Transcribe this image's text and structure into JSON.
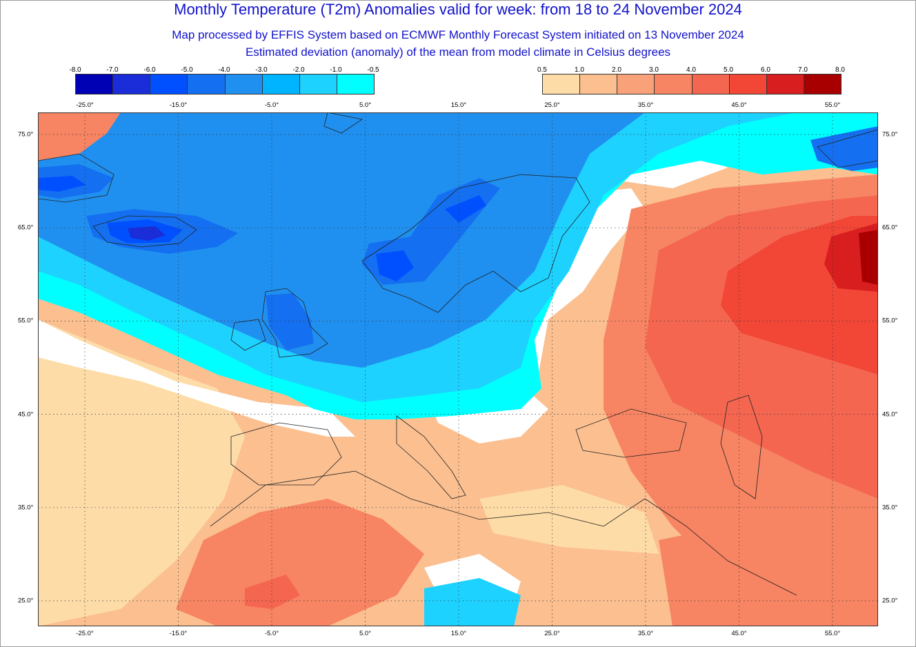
{
  "titles": {
    "main": "Monthly Temperature (T2m) Anomalies valid for week: from 18 to 24 November 2024",
    "sub1": "Map processed by EFFIS System based on ECMWF Monthly Forecast System initiated on 13 November 2024",
    "sub2": "Estimated deviation (anomaly) of the mean from model climate in Celsius degrees"
  },
  "legend_cold": {
    "ticks": [
      "-8.0",
      "-7.0",
      "-6.0",
      "-5.0",
      "-4.0",
      "-3.0",
      "-2.0",
      "-1.0",
      "-0.5"
    ],
    "colors": [
      "#0000b4",
      "#1a2dd9",
      "#0050ff",
      "#1470f0",
      "#2090f0",
      "#00b4ff",
      "#1ed2ff",
      "#00ffff"
    ]
  },
  "legend_warm": {
    "ticks": [
      "0.5",
      "1.0",
      "2.0",
      "3.0",
      "4.0",
      "5.0",
      "6.0",
      "7.0",
      "8.0"
    ],
    "colors": [
      "#fddca8",
      "#fbbf90",
      "#f9a27a",
      "#f78462",
      "#f46650",
      "#f24637",
      "#d81e1e",
      "#a80000"
    ]
  },
  "axes": {
    "lon_labels": [
      "-25.0°",
      "-15.0°",
      "-5.0°",
      "5.0°",
      "15.0°",
      "25.0°",
      "35.0°",
      "45.0°",
      "55.0°"
    ],
    "lat_labels": [
      "75.0°",
      "65.0°",
      "55.0°",
      "45.0°",
      "35.0°",
      "25.0°"
    ]
  },
  "fills": {
    "land_base": "#fbbf90",
    "ocean_south": "#fddca8",
    "neutral": "#ffffff",
    "cold_mid": "#2090f0",
    "cold_light": "#1ed2ff",
    "cold_lightest": "#00ffff",
    "cold_strong": "#1470f0",
    "cold_deep": "#0050ff",
    "cold_core": "#1a2dd9",
    "warm_mid": "#f78462",
    "warm_strong": "#f46650",
    "warm_hot": "#f24637",
    "warm_core": "#d81e1e",
    "warm_max": "#a80000"
  }
}
